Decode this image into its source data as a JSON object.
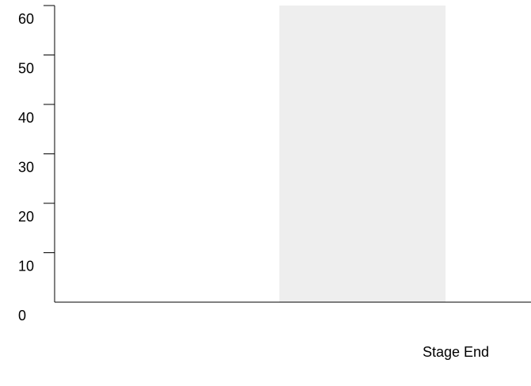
{
  "chart_data": {
    "type": "area",
    "title": "",
    "xlabel": "",
    "ylabel": "",
    "ylim": [
      0,
      60
    ],
    "yticks": [
      0,
      10,
      20,
      30,
      40,
      50,
      60
    ],
    "grid": false,
    "legend": "none",
    "shaded_band": {
      "label": "Stage End",
      "y_from": 0,
      "y_to": 60,
      "color": "#eeeeee"
    },
    "axis_color": "#000000",
    "series": []
  }
}
